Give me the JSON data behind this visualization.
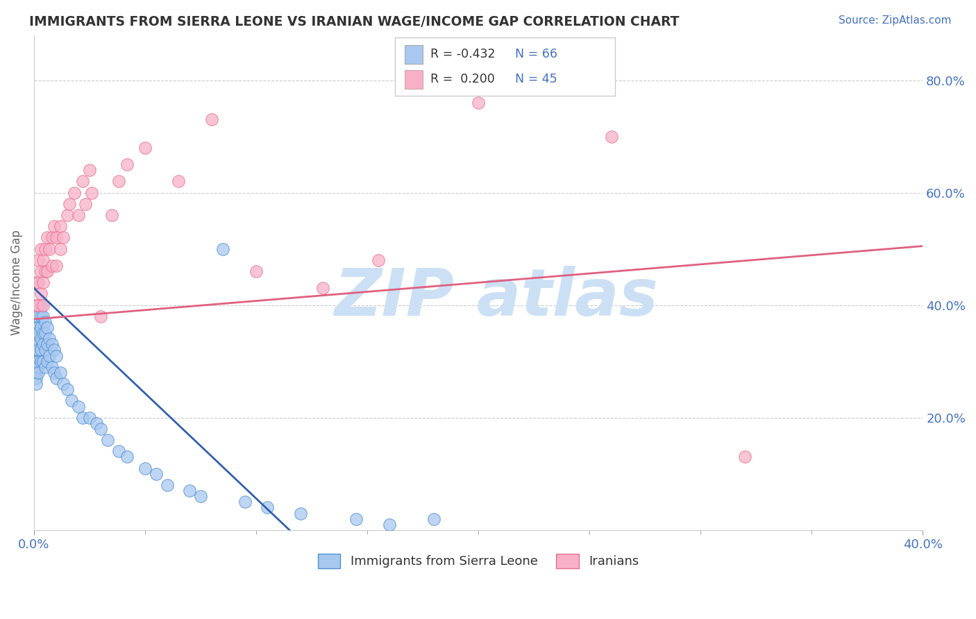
{
  "title": "IMMIGRANTS FROM SIERRA LEONE VS IRANIAN WAGE/INCOME GAP CORRELATION CHART",
  "source": "Source: ZipAtlas.com",
  "ylabel": "Wage/Income Gap",
  "yticks": [
    "20.0%",
    "40.0%",
    "60.0%",
    "80.0%"
  ],
  "ytick_vals": [
    0.2,
    0.4,
    0.6,
    0.8
  ],
  "xtick_labels": [
    "0.0%",
    "40.0%"
  ],
  "xtick_vals": [
    0.0,
    0.4
  ],
  "xlim": [
    0.0,
    0.4
  ],
  "ylim": [
    0.0,
    0.88
  ],
  "legend_label1": "Immigrants from Sierra Leone",
  "legend_label2": "Iranians",
  "color_blue": "#a8c8f0",
  "color_pink": "#f8b0c8",
  "color_blue_line": "#3060b0",
  "color_pink_line": "#e06080",
  "color_blue_edge": "#5090d0",
  "color_pink_edge": "#e87090",
  "blue_trend_x0": 0.0,
  "blue_trend_y0": 0.43,
  "blue_trend_x1": 0.115,
  "blue_trend_y1": 0.0,
  "pink_trend_x0": 0.0,
  "pink_trend_y0": 0.375,
  "pink_trend_x1": 0.4,
  "pink_trend_y1": 0.505,
  "watermark_text": "ZIP atlas",
  "watermark_color": "#cce0f5",
  "blue_x": [
    0.001,
    0.001,
    0.001,
    0.001,
    0.001,
    0.001,
    0.001,
    0.001,
    0.002,
    0.002,
    0.002,
    0.002,
    0.002,
    0.002,
    0.002,
    0.002,
    0.003,
    0.003,
    0.003,
    0.003,
    0.003,
    0.003,
    0.004,
    0.004,
    0.004,
    0.004,
    0.005,
    0.005,
    0.005,
    0.005,
    0.006,
    0.006,
    0.006,
    0.007,
    0.007,
    0.008,
    0.008,
    0.009,
    0.009,
    0.01,
    0.01,
    0.012,
    0.013,
    0.015,
    0.017,
    0.02,
    0.022,
    0.025,
    0.028,
    0.03,
    0.033,
    0.038,
    0.042,
    0.05,
    0.055,
    0.06,
    0.07,
    0.075,
    0.085,
    0.095,
    0.105,
    0.12,
    0.145,
    0.16,
    0.18
  ],
  "blue_y": [
    0.36,
    0.34,
    0.32,
    0.3,
    0.29,
    0.28,
    0.27,
    0.26,
    0.38,
    0.36,
    0.35,
    0.33,
    0.32,
    0.3,
    0.29,
    0.28,
    0.4,
    0.38,
    0.36,
    0.34,
    0.32,
    0.3,
    0.38,
    0.35,
    0.33,
    0.3,
    0.37,
    0.35,
    0.32,
    0.29,
    0.36,
    0.33,
    0.3,
    0.34,
    0.31,
    0.33,
    0.29,
    0.32,
    0.28,
    0.31,
    0.27,
    0.28,
    0.26,
    0.25,
    0.23,
    0.22,
    0.2,
    0.2,
    0.19,
    0.18,
    0.16,
    0.14,
    0.13,
    0.11,
    0.1,
    0.08,
    0.07,
    0.06,
    0.5,
    0.05,
    0.04,
    0.03,
    0.02,
    0.01,
    0.02
  ],
  "pink_x": [
    0.001,
    0.001,
    0.002,
    0.002,
    0.002,
    0.003,
    0.003,
    0.003,
    0.004,
    0.004,
    0.004,
    0.005,
    0.005,
    0.006,
    0.006,
    0.007,
    0.008,
    0.008,
    0.009,
    0.01,
    0.01,
    0.012,
    0.012,
    0.013,
    0.015,
    0.016,
    0.018,
    0.02,
    0.022,
    0.023,
    0.025,
    0.026,
    0.03,
    0.035,
    0.038,
    0.042,
    0.05,
    0.065,
    0.08,
    0.1,
    0.13,
    0.155,
    0.2,
    0.26,
    0.32
  ],
  "pink_y": [
    0.44,
    0.4,
    0.48,
    0.44,
    0.4,
    0.5,
    0.46,
    0.42,
    0.48,
    0.44,
    0.4,
    0.5,
    0.46,
    0.52,
    0.46,
    0.5,
    0.52,
    0.47,
    0.54,
    0.52,
    0.47,
    0.54,
    0.5,
    0.52,
    0.56,
    0.58,
    0.6,
    0.56,
    0.62,
    0.58,
    0.64,
    0.6,
    0.38,
    0.56,
    0.62,
    0.65,
    0.68,
    0.62,
    0.73,
    0.46,
    0.43,
    0.48,
    0.76,
    0.7,
    0.13
  ]
}
